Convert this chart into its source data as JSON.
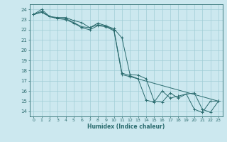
{
  "xlabel": "Humidex (Indice chaleur)",
  "background_color": "#cce8ef",
  "grid_color": "#a0cdd6",
  "line_color": "#2a6b6e",
  "xlim": [
    -0.5,
    23.5
  ],
  "ylim": [
    13.5,
    24.5
  ],
  "xticks": [
    0,
    1,
    2,
    3,
    4,
    5,
    6,
    7,
    8,
    9,
    10,
    11,
    12,
    13,
    14,
    15,
    16,
    17,
    18,
    19,
    20,
    21,
    22,
    23
  ],
  "yticks": [
    14,
    15,
    16,
    17,
    18,
    19,
    20,
    21,
    22,
    23,
    24
  ],
  "line1_x": [
    0,
    1,
    2,
    3,
    4,
    5,
    6,
    7,
    8,
    9,
    10,
    11,
    12,
    13,
    14,
    15,
    16,
    17,
    18,
    19,
    20,
    21,
    22,
    23
  ],
  "line1_y": [
    23.5,
    24.0,
    23.3,
    23.2,
    23.2,
    22.9,
    22.7,
    22.2,
    22.65,
    22.4,
    22.1,
    21.2,
    17.6,
    17.55,
    17.2,
    15.0,
    14.9,
    15.8,
    15.3,
    15.7,
    15.8,
    14.2,
    13.9,
    15.0
  ],
  "line2_x": [
    0,
    1,
    2,
    3,
    4,
    5,
    6,
    7,
    8,
    9,
    10,
    11,
    12,
    13,
    14,
    15,
    16,
    17,
    18,
    19,
    20,
    21,
    22,
    23
  ],
  "line2_y": [
    23.5,
    23.8,
    23.3,
    23.1,
    23.1,
    22.7,
    22.3,
    22.2,
    22.5,
    22.35,
    22.0,
    17.75,
    17.5,
    17.2,
    15.1,
    14.9,
    16.0,
    15.3,
    15.5,
    15.7,
    14.2,
    13.9,
    15.0,
    15.0
  ],
  "line3_x": [
    0,
    1,
    2,
    3,
    4,
    5,
    6,
    7,
    8,
    9,
    10,
    11,
    12,
    23
  ],
  "line3_y": [
    23.5,
    23.7,
    23.3,
    23.1,
    23.0,
    22.65,
    22.2,
    22.0,
    22.4,
    22.3,
    21.9,
    17.6,
    17.4,
    15.0
  ]
}
